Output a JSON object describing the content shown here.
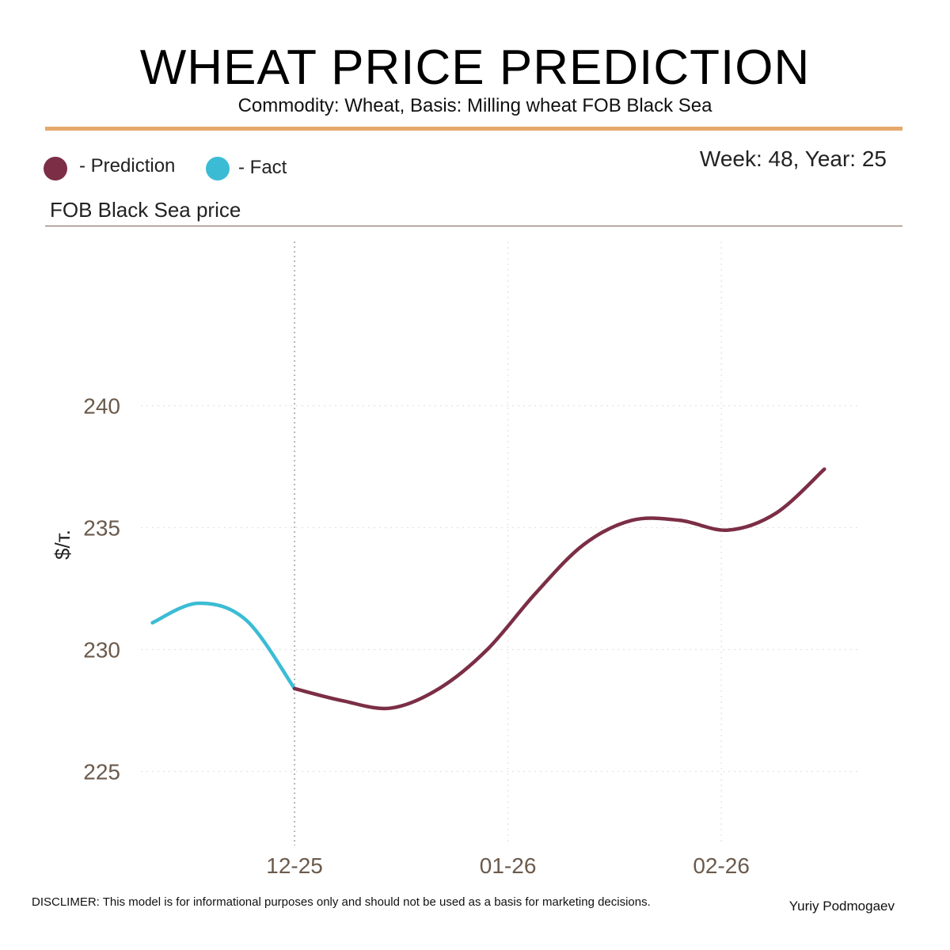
{
  "header": {
    "title": "WHEAT PRICE PREDICTION",
    "subtitle": "Commodity: Wheat, Basis: Milling wheat FOB Black Sea"
  },
  "legend": {
    "prediction_label": "- Prediction",
    "fact_label": "- Fact",
    "prediction_color": "#7b2e45",
    "fact_color": "#3bbcd4"
  },
  "week_label": "Week: 48, Year: 25",
  "section_title": "FOB Black Sea price",
  "accent_color": "#e6a96b",
  "chart_data": {
    "type": "line",
    "title": "FOB Black Sea price",
    "xlabel": "",
    "ylabel": "$/т.",
    "ylim": [
      221.9,
      246.9
    ],
    "y_ticks": [
      225,
      230,
      235,
      240
    ],
    "x_ticks": [
      {
        "label": "12-25",
        "week": 0
      },
      {
        "label": "01-26",
        "week": 4.43
      },
      {
        "label": "02-26",
        "week": 8.86
      }
    ],
    "xlim": [
      -3.65,
      11.8
    ],
    "current_week_marker": 0,
    "grid": true,
    "series": [
      {
        "name": "Fact",
        "color": "#3bbcd4",
        "x": [
          -2.95,
          -2.0,
          -1.0,
          0
        ],
        "y": [
          231.1,
          231.9,
          231.2,
          228.4
        ]
      },
      {
        "name": "Prediction",
        "color": "#7b2e45",
        "x": [
          0,
          1,
          2,
          3,
          4,
          5,
          6,
          7,
          8,
          9,
          10,
          11
        ],
        "y": [
          228.4,
          227.9,
          227.6,
          228.4,
          230.0,
          232.3,
          234.3,
          235.3,
          235.3,
          234.9,
          235.6,
          237.4
        ]
      }
    ]
  },
  "footer": {
    "disclaimer": "DISCLIMER:  This model is for informational purposes only and should not be used as a basis for marketing decisions.",
    "author": "Yuriy Podmogaev"
  }
}
